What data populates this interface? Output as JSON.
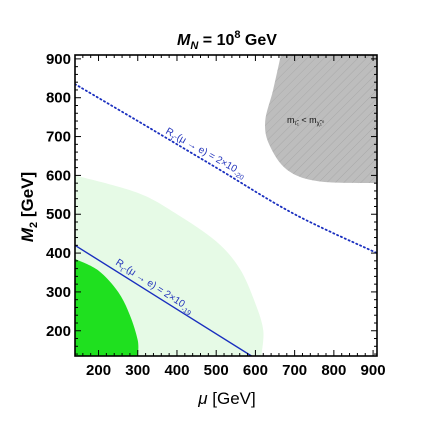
{
  "chart_data": {
    "type": "region-plot",
    "title": {
      "prefix": "M",
      "sub": "N",
      "middle": " = 10",
      "sup": "8",
      "suffix": " GeV"
    },
    "xlabel": {
      "symbol": "μ",
      "unit": " [GeV]"
    },
    "ylabel": {
      "symbol": "M",
      "sub": "2",
      "unit": " [GeV]"
    },
    "xlim": [
      140,
      910
    ],
    "ylim": [
      135,
      910
    ],
    "xticks": [
      200,
      300,
      400,
      500,
      600,
      700,
      800,
      900
    ],
    "yticks": [
      200,
      300,
      400,
      500,
      600,
      700,
      800,
      900
    ],
    "regions": [
      {
        "name": "light-green",
        "color": "#e6fae6",
        "boundary": [
          [
            140,
            600
          ],
          [
            300,
            555
          ],
          [
            400,
            500
          ],
          [
            500,
            430
          ],
          [
            560,
            360
          ],
          [
            600,
            270
          ],
          [
            620,
            200
          ],
          [
            615,
            135
          ]
        ]
      },
      {
        "name": "green",
        "color": "#1fe01f",
        "boundary": [
          [
            140,
            385
          ],
          [
            200,
            355
          ],
          [
            250,
            300
          ],
          [
            280,
            240
          ],
          [
            300,
            175
          ],
          [
            300,
            135
          ]
        ]
      },
      {
        "name": "gray",
        "color": "#bdbdbd",
        "label": "m_τ̃₁ < m_χ̃₁⁰",
        "boundary": [
          [
            665,
            910
          ],
          [
            645,
            820
          ],
          [
            625,
            740
          ],
          [
            635,
            680
          ],
          [
            680,
            615
          ],
          [
            760,
            585
          ],
          [
            910,
            580
          ]
        ]
      }
    ],
    "curves": [
      {
        "name": "solid",
        "style": "solid",
        "color": "#1a2fbf",
        "label": "R_τ̃(μ→e) = 2×10⁻¹⁹",
        "x": [
          140,
          590
        ],
        "y": [
          420,
          135
        ]
      },
      {
        "name": "dotted",
        "style": "dotted",
        "color": "#1a2fbf",
        "label": "R_τ̃(μ→e) = 2×10⁻²⁰",
        "x": [
          140,
          300,
          500,
          700,
          910
        ],
        "y": [
          835,
          740,
          620,
          500,
          400
        ]
      }
    ]
  }
}
